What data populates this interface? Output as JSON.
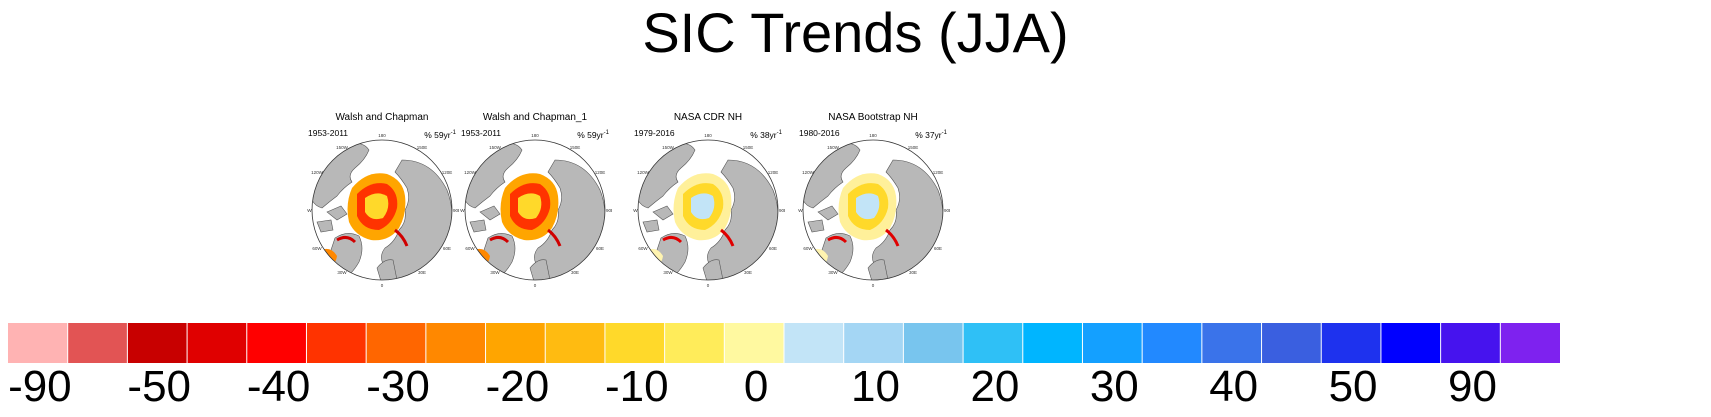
{
  "title": "SIC Trends (JJA)",
  "panels": [
    {
      "name": "Walsh and Chapman",
      "period": "1953-2011",
      "rate": "% 59yr",
      "rate_sup": "-1",
      "pattern": "decline"
    },
    {
      "name": "Walsh and Chapman_1",
      "period": "1953-2011",
      "rate": "% 59yr",
      "rate_sup": "-1",
      "pattern": "decline"
    },
    {
      "name": "NASA CDR NH",
      "period": "1979-2016",
      "rate": "% 38yr",
      "rate_sup": "-1",
      "pattern": "mixed"
    },
    {
      "name": "NASA Bootstrap NH",
      "period": "1980-2016",
      "rate": "% 37yr",
      "rate_sup": "-1",
      "pattern": "mixed"
    }
  ],
  "map_labels": {
    "top": "180",
    "tl1": "150W",
    "tl2": "120W",
    "left": "90W",
    "bl1": "60W",
    "bl2": "30W",
    "bottom": "0",
    "tr": "150E",
    "r1": "120E",
    "right": "90E",
    "br1": "60E",
    "br2": "30E"
  },
  "colorbar": {
    "colors": [
      "#ffb3b3",
      "#e25454",
      "#c80000",
      "#e00000",
      "#ff0000",
      "#ff3300",
      "#ff6600",
      "#ff8800",
      "#ffa500",
      "#ffbb11",
      "#ffd92a",
      "#ffec5a",
      "#fff9a0",
      "#c2e4f7",
      "#a4d6f4",
      "#78c5ee",
      "#2fc0f6",
      "#00b5ff",
      "#14a0ff",
      "#2289ff",
      "#3a73ea",
      "#3a5fe0",
      "#1e32ee",
      "#0000ff",
      "#4613ee",
      "#7e22ef"
    ],
    "labels": [
      {
        "text": "-90",
        "index": 1
      },
      {
        "text": "-50",
        "index": 3
      },
      {
        "text": "-40",
        "index": 5
      },
      {
        "text": "-30",
        "index": 7
      },
      {
        "text": "-20",
        "index": 9
      },
      {
        "text": "-10",
        "index": 11
      },
      {
        "text": "0",
        "index": 13
      },
      {
        "text": "10",
        "index": 15
      },
      {
        "text": "20",
        "index": 17
      },
      {
        "text": "30",
        "index": 19
      },
      {
        "text": "40",
        "index": 21
      },
      {
        "text": "50",
        "index": 23
      },
      {
        "text": "90",
        "index": 25
      }
    ]
  }
}
